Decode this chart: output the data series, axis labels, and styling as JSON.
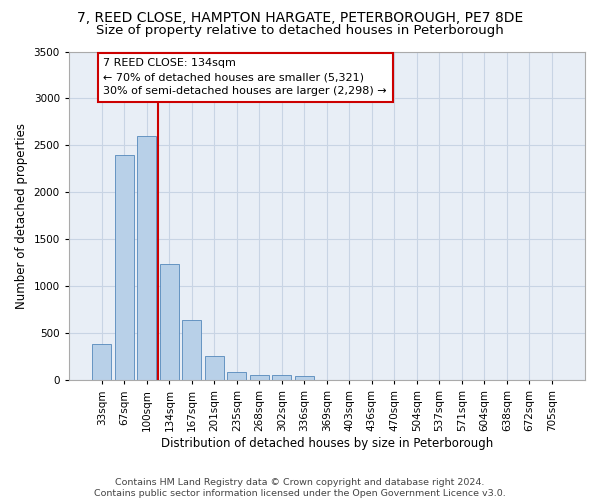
{
  "title1": "7, REED CLOSE, HAMPTON HARGATE, PETERBOROUGH, PE7 8DE",
  "title2": "Size of property relative to detached houses in Peterborough",
  "xlabel": "Distribution of detached houses by size in Peterborough",
  "ylabel": "Number of detached properties",
  "categories": [
    "33sqm",
    "67sqm",
    "100sqm",
    "134sqm",
    "167sqm",
    "201sqm",
    "235sqm",
    "268sqm",
    "302sqm",
    "336sqm",
    "369sqm",
    "403sqm",
    "436sqm",
    "470sqm",
    "504sqm",
    "537sqm",
    "571sqm",
    "604sqm",
    "638sqm",
    "672sqm",
    "705sqm"
  ],
  "values": [
    390,
    2400,
    2600,
    1240,
    640,
    255,
    90,
    58,
    58,
    42,
    0,
    0,
    0,
    0,
    0,
    0,
    0,
    0,
    0,
    0,
    0
  ],
  "bar_color": "#b8d0e8",
  "bar_edge_color": "#5588bb",
  "grid_color": "#c8d4e4",
  "bg_color": "#e8eef6",
  "vline_color": "#cc0000",
  "vline_x_idx": 3,
  "annotation_text": "7 REED CLOSE: 134sqm\n← 70% of detached houses are smaller (5,321)\n30% of semi-detached houses are larger (2,298) →",
  "box_edge_color": "#cc0000",
  "ylim_max": 3500,
  "yticks": [
    0,
    500,
    1000,
    1500,
    2000,
    2500,
    3000,
    3500
  ],
  "footnote": "Contains HM Land Registry data © Crown copyright and database right 2024.\nContains public sector information licensed under the Open Government Licence v3.0.",
  "title1_fontsize": 10,
  "title2_fontsize": 9.5,
  "annotation_fontsize": 8,
  "ylabel_fontsize": 8.5,
  "xlabel_fontsize": 8.5,
  "footnote_fontsize": 6.8,
  "tick_fontsize": 7.5
}
